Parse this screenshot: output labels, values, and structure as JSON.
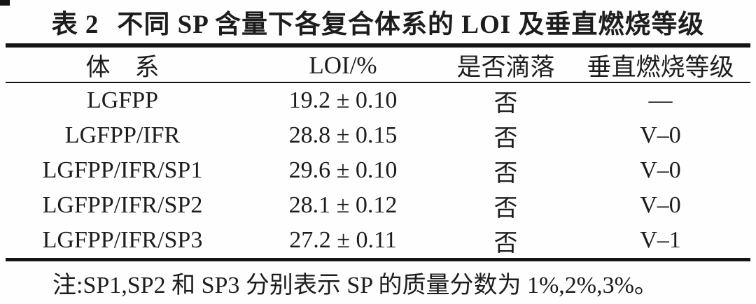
{
  "table": {
    "label": "表 2",
    "title": "不同 SP 含量下各复合体系的 LOI 及垂直燃烧等级",
    "columns": [
      "体　系",
      "LOI/%",
      "是否滴落",
      "垂直燃烧等级"
    ],
    "rows": [
      {
        "system": "LGFPP",
        "loi": "19.2 ± 0.10",
        "dripping": "否",
        "rating": "—"
      },
      {
        "system": "LGFPP/IFR",
        "loi": "28.8 ± 0.15",
        "dripping": "否",
        "rating": "V–0"
      },
      {
        "system": "LGFPP/IFR/SP1",
        "loi": "29.6 ± 0.10",
        "dripping": "否",
        "rating": "V–0"
      },
      {
        "system": "LGFPP/IFR/SP2",
        "loi": "28.1 ± 0.12",
        "dripping": "否",
        "rating": "V–0"
      },
      {
        "system": "LGFPP/IFR/SP3",
        "loi": "27.2 ± 0.11",
        "dripping": "否",
        "rating": "V–1"
      }
    ],
    "note": "注:SP1,SP2 和 SP3 分别表示 SP 的质量分数为 1%,2%,3%。"
  },
  "colors": {
    "background": "#fefefe",
    "text": "#1d1d1d",
    "rule": "#151515"
  }
}
